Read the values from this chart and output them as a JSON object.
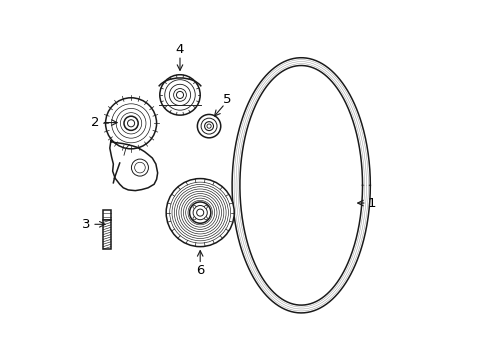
{
  "background_color": "#ffffff",
  "line_color": "#1a1a1a",
  "label_color": "#000000",
  "fig_width": 4.89,
  "fig_height": 3.6,
  "dpi": 100
}
